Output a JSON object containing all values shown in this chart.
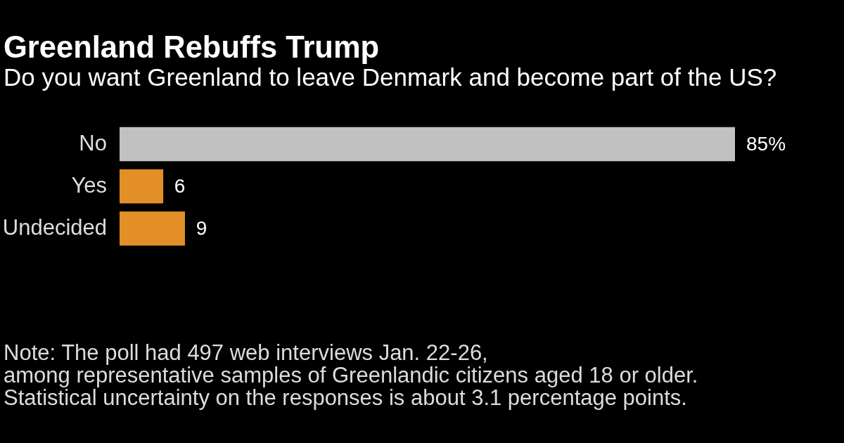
{
  "chart_data": {
    "type": "bar",
    "orientation": "horizontal",
    "title": "Greenland Rebuffs Trump",
    "subtitle": "Do you want Greenland to leave Denmark and become part of the US?",
    "categories": [
      "No",
      "Yes",
      "Undecided"
    ],
    "values": [
      85,
      6,
      9
    ],
    "colors": [
      "#c1c1c1",
      "#e28f27",
      "#e28f27"
    ],
    "value_labels": [
      "85%",
      "6",
      "9"
    ],
    "tick_labels": "y",
    "grid": false,
    "legend": false,
    "annotations": [
      "Note: The poll had 497 web interviews Jan. 22-26,\namong representative samples of Greenlandic citizens aged 18 or older.\nStatistical uncertainty on the responses is about 3.1 percentage points."
    ]
  }
}
